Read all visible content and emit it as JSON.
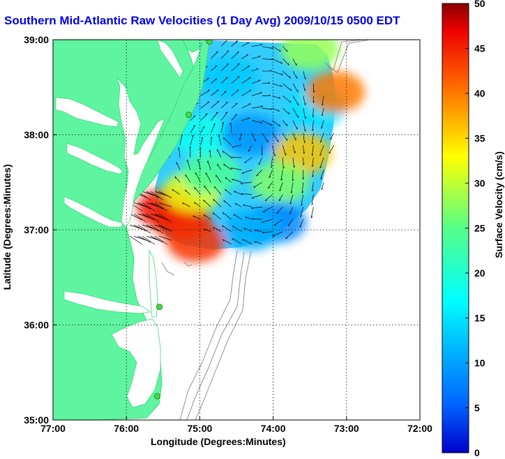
{
  "title": "Southern Mid-Atlantic Raw Velocities (1 Day Avg) 2009/10/15 0500 EDT",
  "chart_data": {
    "type": "map",
    "xlabel": "Longitude (Degrees:Minutes)",
    "ylabel": "Latitude (Degrees:Minutes)",
    "xticks": [
      "77:00",
      "76:00",
      "75:00",
      "74:00",
      "73:00",
      "72:00"
    ],
    "yticks": [
      "39:00",
      "38:00",
      "37:00",
      "36:00",
      "35:00"
    ],
    "xlim": [
      -77,
      -72
    ],
    "ylim": [
      35,
      39
    ],
    "grid": true,
    "colorbar": {
      "label": "Surface Velocity (cm/s)",
      "range": [
        0,
        50
      ],
      "ticks": [
        "50",
        "45",
        "40",
        "35",
        "30",
        "25",
        "20",
        "15",
        "10",
        "5",
        "0"
      ],
      "colormap": "jet"
    },
    "colors": {
      "land": "#5ff5a0",
      "title": "#0000e6",
      "stations": "#44dd44",
      "bathymetry": "#909090"
    },
    "stations": [
      {
        "lon": -74.87,
        "lat": 38.98
      },
      {
        "lon": -75.15,
        "lat": 38.21
      },
      {
        "lon": -75.55,
        "lat": 36.19
      },
      {
        "lon": -75.58,
        "lat": 35.25
      }
    ],
    "velocity_field": [
      {
        "lon": -75.45,
        "lat": 37.22,
        "speed": 46
      },
      {
        "lon": -75.25,
        "lat": 37.1,
        "speed": 45
      },
      {
        "lon": -75.05,
        "lat": 36.88,
        "speed": 44
      },
      {
        "lon": -75.1,
        "lat": 37.4,
        "speed": 32
      },
      {
        "lon": -74.85,
        "lat": 37.6,
        "speed": 24
      },
      {
        "lon": -75.0,
        "lat": 38.0,
        "speed": 18
      },
      {
        "lon": -74.6,
        "lat": 38.6,
        "speed": 13
      },
      {
        "lon": -74.3,
        "lat": 38.0,
        "speed": 9
      },
      {
        "lon": -73.6,
        "lat": 37.8,
        "speed": 36
      },
      {
        "lon": -73.9,
        "lat": 37.5,
        "speed": 27
      },
      {
        "lon": -73.95,
        "lat": 37.08,
        "speed": 8
      },
      {
        "lon": -74.3,
        "lat": 37.0,
        "speed": 11
      },
      {
        "lon": -73.4,
        "lat": 38.3,
        "speed": 15
      },
      {
        "lon": -73.5,
        "lat": 38.9,
        "speed": 28
      },
      {
        "lon": -73.15,
        "lat": 38.45,
        "speed": 40
      }
    ]
  }
}
